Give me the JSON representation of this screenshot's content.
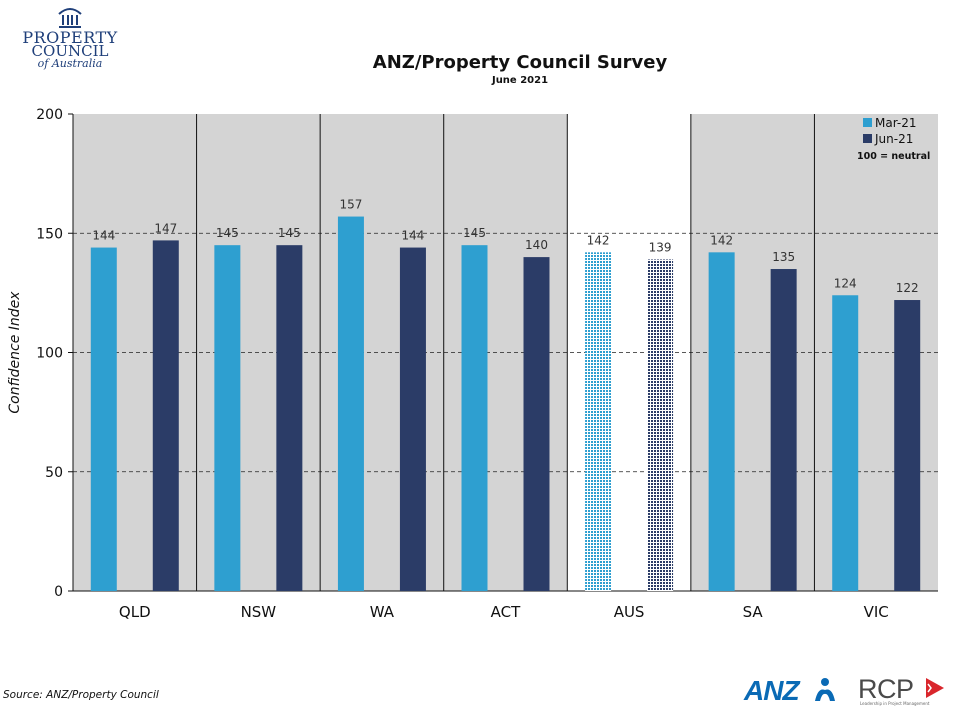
{
  "logos": {
    "property_council": [
      "PROPERTY",
      "COUNCIL",
      "of Australia"
    ],
    "anz": "ANZ",
    "rcp": "RCP",
    "rcp_tagline": "Leadership in Project Management"
  },
  "source": "Source: ANZ/Property Council",
  "colors": {
    "mar": "#2e9fd0",
    "jun": "#2b3c67",
    "panel_bg": "#d4d4d4",
    "highlight_bg": "#ffffff"
  },
  "chart_data": {
    "type": "bar",
    "title": "ANZ/Property Council Survey",
    "subtitle": "June 2021",
    "ylabel": "Confidence Index",
    "xlabel": "",
    "ylim": [
      0,
      200
    ],
    "yticks": [
      0,
      50,
      100,
      150,
      200
    ],
    "grid": "dashed horizontal at 50, 100, 150",
    "categories": [
      "QLD",
      "NSW",
      "WA",
      "ACT",
      "AUS",
      "SA",
      "VIC"
    ],
    "highlight_category": "AUS",
    "series": [
      {
        "name": "Mar-21",
        "values": [
          144,
          145,
          157,
          145,
          142,
          142,
          124
        ]
      },
      {
        "name": "Jun-21",
        "values": [
          147,
          145,
          144,
          140,
          139,
          135,
          122
        ]
      }
    ],
    "legend": {
      "position": "top-right",
      "note": "100 = neutral"
    }
  }
}
